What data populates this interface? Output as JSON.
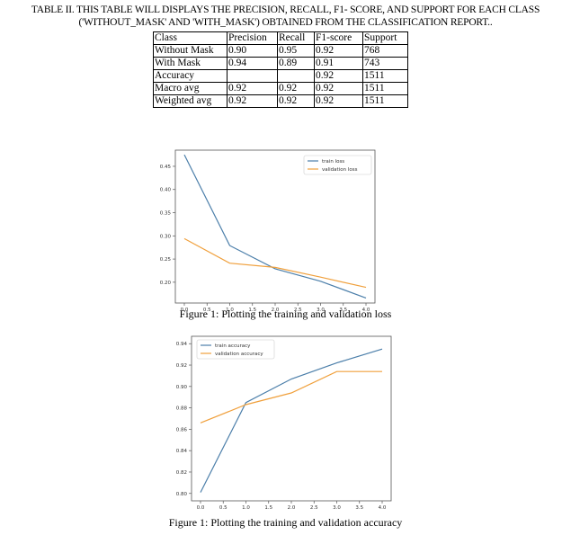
{
  "table_caption": {
    "line1": "TABLE II.  THIS TABLE WILL DISPLAYS THE PRECISION, RECALL, F1- SCORE, AND SUPPORT FOR EACH CLASS",
    "line2": "('WITHOUT_MASK' AND  'WITH_MASK') OBTAINED FROM THE CLASSIFICATION REPORT.."
  },
  "table": {
    "headers": [
      "Class",
      "Precision",
      "Recall",
      "F1-score",
      "Support"
    ],
    "rows": [
      [
        "Without Mask",
        "0.90",
        "0.95",
        "0.92",
        "768"
      ],
      [
        "With Mask",
        "0.94",
        "0.89",
        "0.91",
        "743"
      ],
      [
        "Accuracy",
        "",
        "",
        "0.92",
        "1511"
      ],
      [
        "Macro avg",
        "0.92",
        "0.92",
        "0.92",
        "1511"
      ],
      [
        "Weighted avg",
        "0.92",
        "0.92",
        "0.92",
        "1511"
      ]
    ]
  },
  "figure1_caption": "Figure 1:  Plotting the training and validation loss",
  "figure2_caption": "Figure 1:  Plotting the training and validation accuracy",
  "colors": {
    "train": "#4c7faa",
    "validation": "#f0a03c"
  },
  "chart_data": [
    {
      "type": "line",
      "x": [
        0,
        1,
        2,
        3,
        4
      ],
      "xticks": [
        "0.0",
        "0.5",
        "1.0",
        "1.5",
        "2.0",
        "2.5",
        "3.0",
        "3.5",
        "4.0"
      ],
      "xlim": [
        0,
        4
      ],
      "ylim": [
        0.17,
        0.47
      ],
      "yticks": [
        "0.20",
        "0.25",
        "0.30",
        "0.35",
        "0.40",
        "0.45"
      ],
      "legend_position": "top-right",
      "series": [
        {
          "name": "train loss",
          "values": [
            0.475,
            0.279,
            0.229,
            0.202,
            0.166
          ]
        },
        {
          "name": "validation loss",
          "values": [
            0.294,
            0.241,
            0.232,
            0.211,
            0.189
          ]
        }
      ]
    },
    {
      "type": "line",
      "x": [
        0,
        1,
        2,
        3,
        4
      ],
      "xticks": [
        "0.0",
        "0.5",
        "1.0",
        "1.5",
        "2.0",
        "2.5",
        "3.0",
        "3.5",
        "4.0"
      ],
      "xlim": [
        0,
        4
      ],
      "ylim": [
        0.8,
        0.94
      ],
      "yticks": [
        "0.80",
        "0.82",
        "0.84",
        "0.86",
        "0.88",
        "0.90",
        "0.92",
        "0.94"
      ],
      "legend_position": "top-left",
      "series": [
        {
          "name": "train accuracy",
          "values": [
            0.801,
            0.885,
            0.907,
            0.922,
            0.935
          ]
        },
        {
          "name": "validation accuracy",
          "values": [
            0.866,
            0.883,
            0.894,
            0.914,
            0.914
          ]
        }
      ]
    }
  ]
}
